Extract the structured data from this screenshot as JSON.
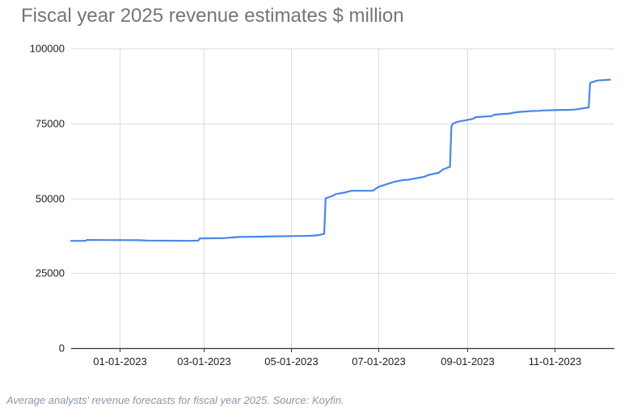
{
  "caption": "Average analysts' revenue forecasts for fiscal year 2025. Source: Koyfin.",
  "colors": {
    "line": "#4a86e8",
    "grid": "#dddddd",
    "axis": "#333333"
  },
  "chart_data": {
    "type": "line",
    "title": "Fiscal year 2025 revenue estimates $ million",
    "xlabel": "",
    "ylabel": "",
    "ylim": [
      0,
      100000
    ],
    "y_ticks": [
      0,
      25000,
      50000,
      75000,
      100000
    ],
    "y_tick_labels": [
      "0",
      "25000",
      "50000",
      "75000",
      "100000"
    ],
    "x_ticks": [
      "2023-01-01",
      "2023-03-01",
      "2023-05-01",
      "2023-07-01",
      "2023-09-01",
      "2023-11-01"
    ],
    "x_tick_labels": [
      "01-01-2023",
      "03-01-2023",
      "05-01-2023",
      "07-01-2023",
      "09-01-2023",
      "11-01-2023"
    ],
    "xlim": [
      "2022-11-28",
      "2023-12-13"
    ],
    "grid": true,
    "series": [
      {
        "x": [
          "2022-11-28",
          "2022-12-08",
          "2022-12-09",
          "2023-01-15",
          "2023-01-20",
          "2023-02-20",
          "2023-02-25",
          "2023-02-26",
          "2023-03-15",
          "2023-03-25",
          "2023-04-10",
          "2023-04-20",
          "2023-05-05",
          "2023-05-08",
          "2023-05-15",
          "2023-05-20",
          "2023-05-24",
          "2023-05-25",
          "2023-05-30",
          "2023-06-01",
          "2023-06-07",
          "2023-06-12",
          "2023-06-27",
          "2023-07-01",
          "2023-07-06",
          "2023-07-12",
          "2023-07-18",
          "2023-07-22",
          "2023-08-02",
          "2023-08-05",
          "2023-08-12",
          "2023-08-15",
          "2023-08-20",
          "2023-08-21",
          "2023-08-22",
          "2023-08-25",
          "2023-09-05",
          "2023-09-07",
          "2023-09-18",
          "2023-09-20",
          "2023-10-01",
          "2023-10-05",
          "2023-10-15",
          "2023-10-22",
          "2023-10-23",
          "2023-11-05",
          "2023-11-10",
          "2023-11-15",
          "2023-11-25",
          "2023-11-26",
          "2023-12-01",
          "2023-12-10"
        ],
        "values": [
          35800,
          35800,
          36100,
          36000,
          35900,
          35800,
          35900,
          36600,
          36700,
          37100,
          37200,
          37300,
          37400,
          37400,
          37500,
          37700,
          38100,
          50000,
          50800,
          51400,
          51900,
          52500,
          52500,
          53800,
          54600,
          55500,
          56100,
          56200,
          57200,
          57800,
          58500,
          59600,
          60500,
          74000,
          74900,
          75500,
          76500,
          77100,
          77400,
          77900,
          78300,
          78700,
          79100,
          79200,
          79300,
          79500,
          79500,
          79600,
          80300,
          88500,
          89300,
          89600
        ]
      }
    ]
  }
}
